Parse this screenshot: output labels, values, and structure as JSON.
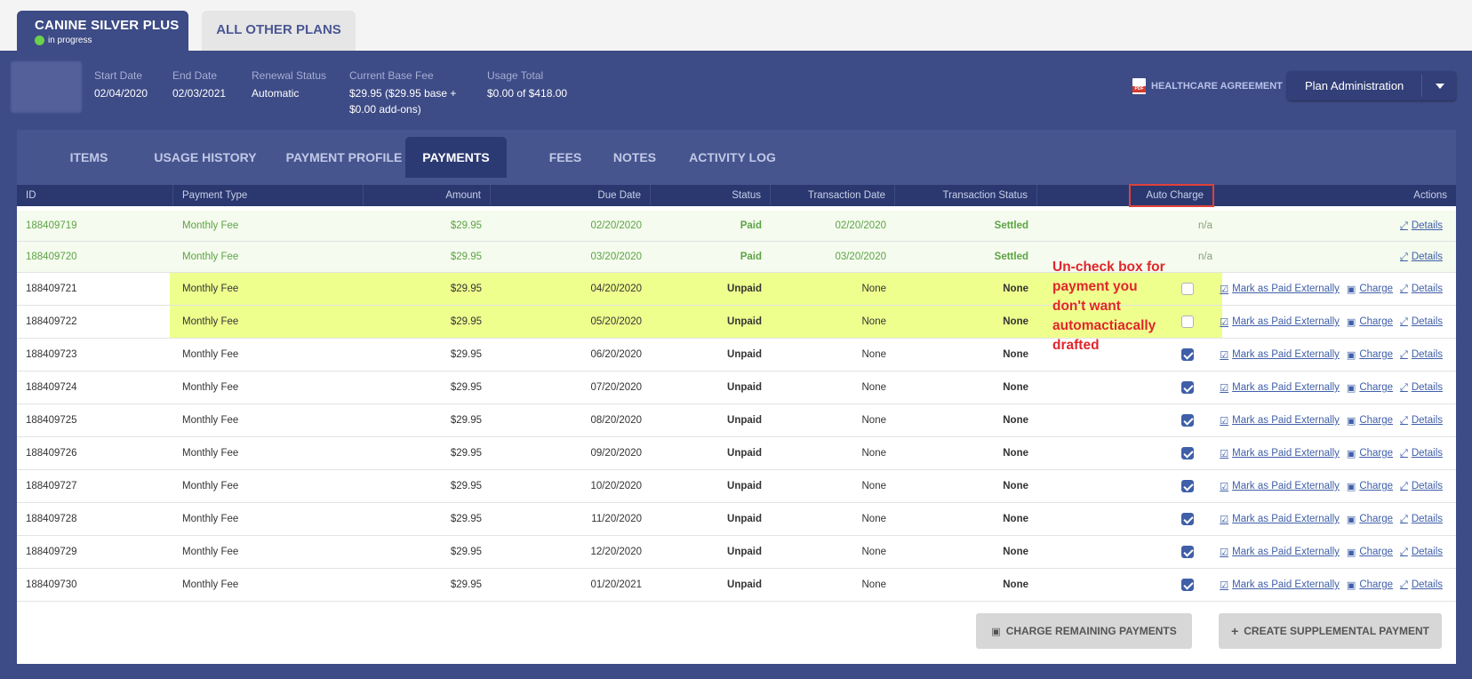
{
  "plan": {
    "active_tab": "CANINE SILVER PLUS",
    "status": "in progress",
    "other_tab": "ALL OTHER PLANS"
  },
  "summary": {
    "start_date_label": "Start Date",
    "start_date": "02/04/2020",
    "end_date_label": "End Date",
    "end_date": "02/03/2021",
    "renewal_label": "Renewal Status",
    "renewal": "Automatic",
    "base_fee_label": "Current Base Fee",
    "base_fee_line1": "$29.95 ($29.95 base +",
    "base_fee_line2": "$0.00 add-ons)",
    "usage_label": "Usage Total",
    "usage": "$0.00 of $418.00"
  },
  "header": {
    "agreement": "HEALTHCARE AGREEMENT",
    "plan_admin": "Plan Administration"
  },
  "subtabs": [
    "ITEMS",
    "USAGE HISTORY",
    "PAYMENT PROFILE",
    "PAYMENTS",
    "FEES",
    "NOTES",
    "ACTIVITY LOG"
  ],
  "columns": {
    "id": "ID",
    "type": "Payment Type",
    "amount": "Amount",
    "due": "Due Date",
    "status": "Status",
    "tdate": "Transaction Date",
    "tstatus": "Transaction Status",
    "auto": "Auto Charge",
    "actions": "Actions"
  },
  "action_labels": {
    "mark": "Mark as Paid Externally",
    "charge": "Charge",
    "details": "Details"
  },
  "rows": [
    {
      "id": "188409719",
      "type": "Monthly Fee",
      "amount": "$29.95",
      "due": "02/20/2020",
      "status": "Paid",
      "tdate": "02/20/2020",
      "tstatus": "Settled",
      "auto": "n/a"
    },
    {
      "id": "188409720",
      "type": "Monthly Fee",
      "amount": "$29.95",
      "due": "03/20/2020",
      "status": "Paid",
      "tdate": "03/20/2020",
      "tstatus": "Settled",
      "auto": "n/a"
    },
    {
      "id": "188409721",
      "type": "Monthly Fee",
      "amount": "$29.95",
      "due": "04/20/2020",
      "status": "Unpaid",
      "tdate": "None",
      "tstatus": "None",
      "auto": "unchecked"
    },
    {
      "id": "188409722",
      "type": "Monthly Fee",
      "amount": "$29.95",
      "due": "05/20/2020",
      "status": "Unpaid",
      "tdate": "None",
      "tstatus": "None",
      "auto": "unchecked"
    },
    {
      "id": "188409723",
      "type": "Monthly Fee",
      "amount": "$29.95",
      "due": "06/20/2020",
      "status": "Unpaid",
      "tdate": "None",
      "tstatus": "None",
      "auto": "checked"
    },
    {
      "id": "188409724",
      "type": "Monthly Fee",
      "amount": "$29.95",
      "due": "07/20/2020",
      "status": "Unpaid",
      "tdate": "None",
      "tstatus": "None",
      "auto": "checked"
    },
    {
      "id": "188409725",
      "type": "Monthly Fee",
      "amount": "$29.95",
      "due": "08/20/2020",
      "status": "Unpaid",
      "tdate": "None",
      "tstatus": "None",
      "auto": "checked"
    },
    {
      "id": "188409726",
      "type": "Monthly Fee",
      "amount": "$29.95",
      "due": "09/20/2020",
      "status": "Unpaid",
      "tdate": "None",
      "tstatus": "None",
      "auto": "checked"
    },
    {
      "id": "188409727",
      "type": "Monthly Fee",
      "amount": "$29.95",
      "due": "10/20/2020",
      "status": "Unpaid",
      "tdate": "None",
      "tstatus": "None",
      "auto": "checked"
    },
    {
      "id": "188409728",
      "type": "Monthly Fee",
      "amount": "$29.95",
      "due": "11/20/2020",
      "status": "Unpaid",
      "tdate": "None",
      "tstatus": "None",
      "auto": "checked"
    },
    {
      "id": "188409729",
      "type": "Monthly Fee",
      "amount": "$29.95",
      "due": "12/20/2020",
      "status": "Unpaid",
      "tdate": "None",
      "tstatus": "None",
      "auto": "checked"
    },
    {
      "id": "188409730",
      "type": "Monthly Fee",
      "amount": "$29.95",
      "due": "01/20/2021",
      "status": "Unpaid",
      "tdate": "None",
      "tstatus": "None",
      "auto": "checked"
    }
  ],
  "annotation": [
    "Un-check box for",
    "payment you",
    "don't want",
    "automactiacally",
    "drafted"
  ],
  "footer": {
    "charge_remaining": "CHARGE REMAINING PAYMENTS",
    "create_supplemental": "CREATE SUPPLEMENTAL PAYMENT"
  },
  "colors": {
    "background": "#3d4b86",
    "highlight": "#efff8e",
    "paid_text": "#5ca345",
    "annotation": "#e0262b"
  }
}
